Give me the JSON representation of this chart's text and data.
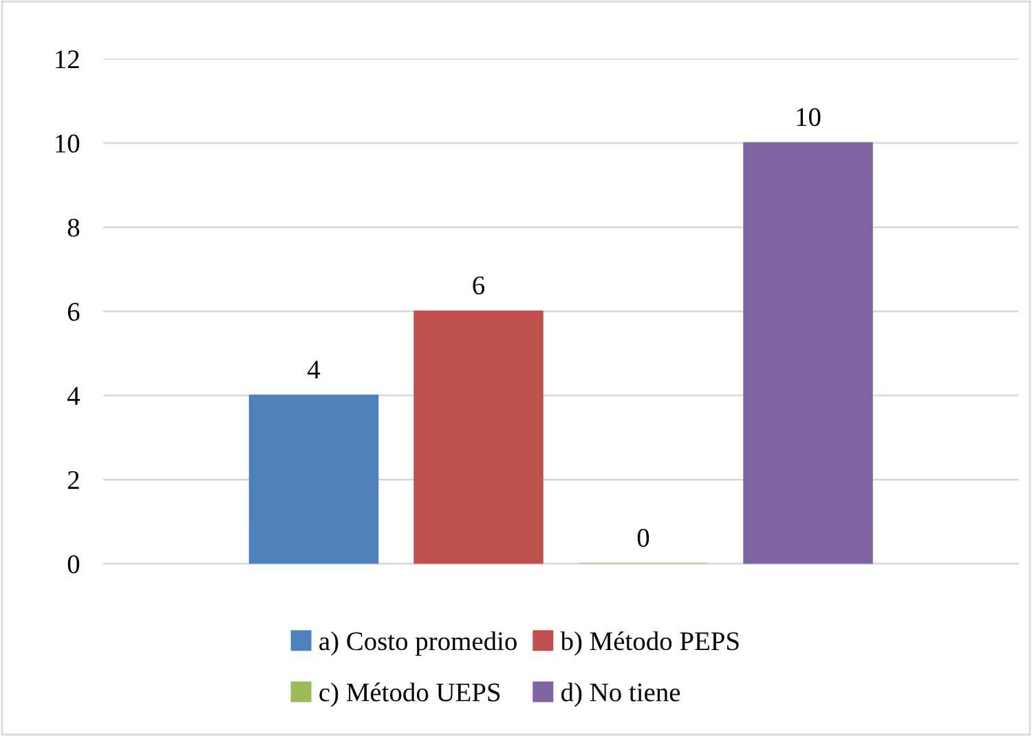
{
  "chart_data": {
    "type": "bar",
    "categories": [
      null
    ],
    "series": [
      {
        "name": "a) Costo promedio",
        "color": "#4f81bd",
        "values": [
          4
        ]
      },
      {
        "name": "b) Método PEPS",
        "color": "#c0504d",
        "values": [
          6
        ]
      },
      {
        "name": "c) Método UEPS",
        "color": "#9bbb59",
        "values": [
          0
        ]
      },
      {
        "name": "d) No tiene",
        "color": "#8064a2",
        "values": [
          10
        ]
      }
    ],
    "ylim": [
      0,
      12
    ],
    "yticks": [
      0,
      2,
      4,
      6,
      8,
      10,
      12
    ],
    "grid": "y",
    "legend": "bottom",
    "data_labels": true
  }
}
